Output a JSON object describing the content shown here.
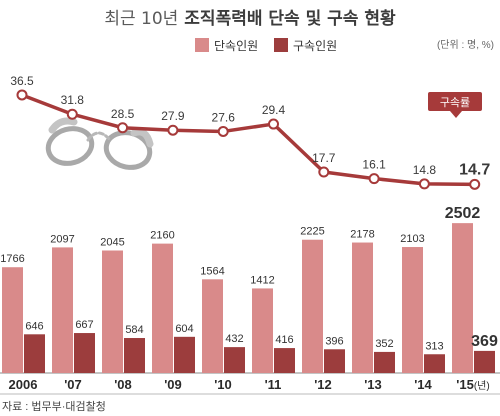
{
  "title": {
    "light": "최근 10년",
    "bold": "조직폭력배 단속 및 구속 현황"
  },
  "unit": "(단위 : 명, %)",
  "source": "자료 : 법무부·대검찰청",
  "callout": "구속률",
  "colors": {
    "crackdown": "#d98a8a",
    "arrest": "#9c3d3d",
    "line": "#a63a3a",
    "callout_bg": "#a63a3a"
  },
  "chart_data": {
    "type": "bar",
    "categories": [
      "2006",
      "'07",
      "'08",
      "'09",
      "'10",
      "'11",
      "'12",
      "'13",
      "'14",
      "'15"
    ],
    "last_category_suffix": "(년)",
    "series": [
      {
        "name": "단속인원",
        "values": [
          1766,
          2097,
          2045,
          2160,
          1564,
          1412,
          2225,
          2178,
          2103,
          2502
        ]
      },
      {
        "name": "구속인원",
        "values": [
          646,
          667,
          584,
          604,
          432,
          416,
          396,
          352,
          313,
          369
        ]
      }
    ],
    "line_series": {
      "name": "구속률",
      "values": [
        36.5,
        31.8,
        28.5,
        27.9,
        27.6,
        29.4,
        17.7,
        16.1,
        14.8,
        14.7
      ],
      "labels": [
        "36.5",
        "31.8",
        "28.5",
        "27.9",
        "27.6",
        "29.4",
        "17.7",
        "16.1",
        "14.8",
        "14.7"
      ]
    },
    "bar_labels": {
      "crackdown": [
        "1766",
        "2097",
        "2045",
        "2160",
        "1564",
        "1412",
        "2225",
        "2178",
        "2103",
        "2502"
      ],
      "arrest": [
        "646",
        "667",
        "584",
        "604",
        "432",
        "416",
        "396",
        "352",
        "313",
        "369"
      ]
    },
    "legend": [
      "단속인원",
      "구속인원"
    ],
    "legend_position": "top-center",
    "grid": false
  }
}
